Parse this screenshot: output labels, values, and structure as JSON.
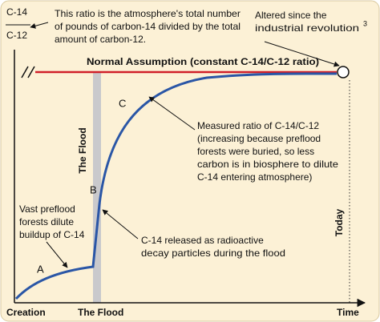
{
  "y_axis_label": {
    "numerator": "C-14",
    "denominator": "C-12"
  },
  "ratio_note": {
    "lines": [
      "This ratio is the atmosphere's total number",
      "of pounds of carbon-14 divided by the total",
      "amount of carbon-12."
    ]
  },
  "altered_note": {
    "lines": [
      "Altered since the",
      "industrial revolution"
    ],
    "superscript": "3"
  },
  "normal_assumption": "Normal Assumption (constant C-14/C-12 ratio)",
  "curve_points": {
    "a": "A",
    "b": "B",
    "c": "C"
  },
  "flood_band_label": "The Flood",
  "today_label": "Today",
  "measured_note": {
    "lines": [
      "Measured ratio of C-14/C-12",
      "(increasing because preflood",
      "forests were buried, so less",
      "carbon is in biosphere to dilute",
      "C-14 entering atmosphere)"
    ]
  },
  "preflood_note": {
    "lines": [
      "Vast preflood",
      "forests dilute",
      "buildup of C-14"
    ]
  },
  "release_note": {
    "lines": [
      "C-14 released as radioactive",
      "decay particles during the flood"
    ]
  },
  "x_axis": {
    "start": "Creation",
    "flood": "The Flood",
    "end": "Time"
  }
}
